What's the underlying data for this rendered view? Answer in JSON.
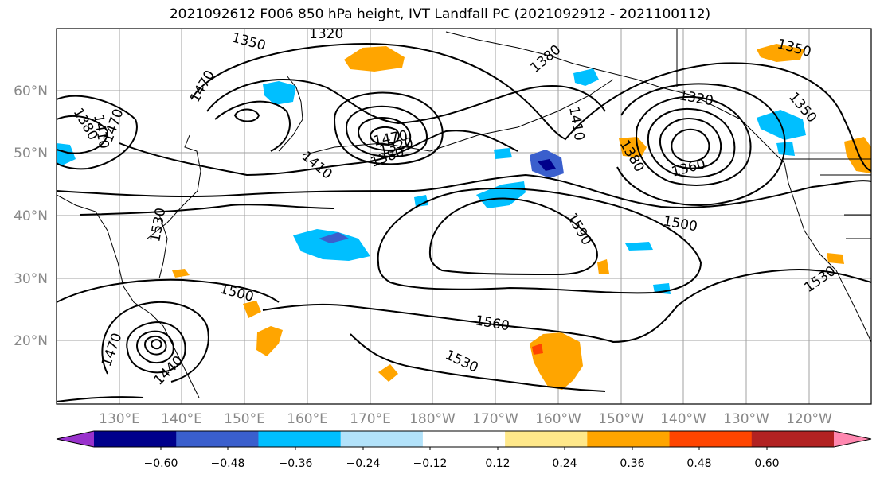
{
  "title": "2021092612 F006 850 hPa height, IVT Landfall PC (2021092912 - 2021100112)",
  "lat_labels": [
    "60°N",
    "50°N",
    "40°N",
    "30°N",
    "20°N"
  ],
  "lon_labels": [
    "130°E",
    "140°E",
    "150°E",
    "160°E",
    "170°E",
    "180°W",
    "170°W",
    "160°W",
    "150°W",
    "140°W",
    "130°W",
    "120°W"
  ],
  "contour_labels": [
    "1350",
    "1320",
    "1380",
    "1470",
    "1380",
    "1410",
    "1470",
    "1470",
    "1320",
    "1380",
    "1410",
    "1410",
    "1320",
    "1380",
    "1360",
    "1350",
    "1350",
    "1500",
    "1590",
    "1530",
    "1530",
    "1500",
    "1560",
    "1530",
    "1470",
    "1440",
    "1530"
  ],
  "colorbar": {
    "tick_labels": [
      "−0.60",
      "−0.48",
      "−0.36",
      "−0.24",
      "−0.12",
      "0.12",
      "0.24",
      "0.36",
      "0.48",
      "0.60"
    ],
    "colors": [
      "#9932cc",
      "#00008b",
      "#3a5fcd",
      "#00bfff",
      "#b2e2fa",
      "#ffffff",
      "#ffe88a",
      "#ffa500",
      "#ff4500",
      "#b22222",
      "#ff88b0"
    ]
  },
  "colors": {
    "negative": "#00bfff",
    "positive": "#ffa500",
    "contour": "#000000",
    "grid": "#a0a0a0",
    "axis_label": "#888888"
  }
}
